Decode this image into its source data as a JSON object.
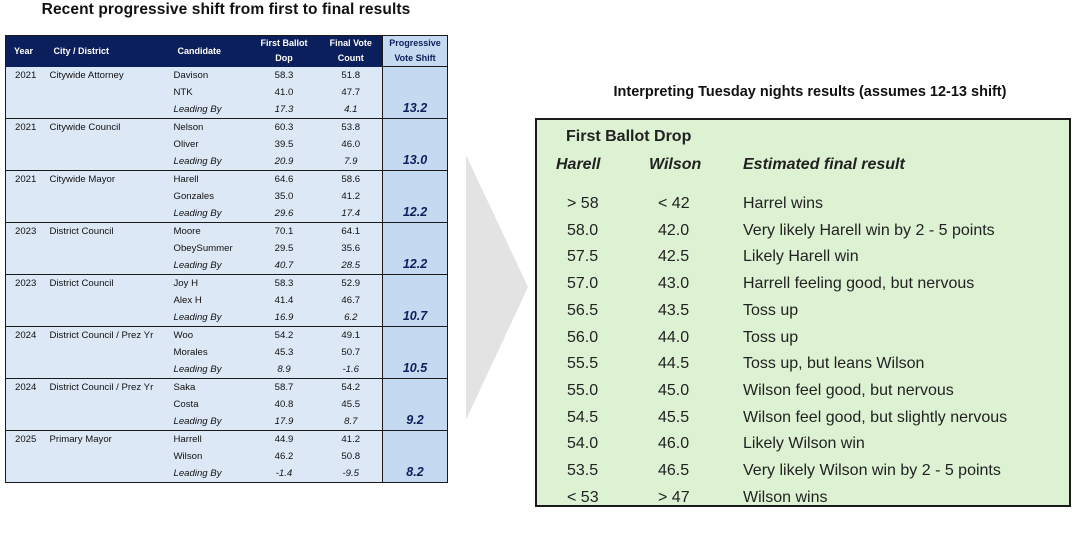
{
  "left_title": "Recent progressive shift from first to final results",
  "table": {
    "headers": {
      "year": "Year",
      "city": "City / District",
      "candidate": "Candidate",
      "first_ballot": [
        "First Ballot",
        "Dop"
      ],
      "final_vote": [
        "Final Vote",
        "Count"
      ],
      "shift": [
        "Progressive",
        "Vote Shift"
      ]
    },
    "groups": [
      {
        "year": "2021",
        "city": "Citywide Attorney",
        "shift": "13.2",
        "rows": [
          [
            "Davison",
            "58.3",
            "51.8"
          ],
          [
            "NTK",
            "41.0",
            "47.7"
          ],
          [
            "Leading By",
            "17.3",
            "4.1"
          ]
        ]
      },
      {
        "year": "2021",
        "city": "Citywide Council",
        "shift": "13.0",
        "rows": [
          [
            "Nelson",
            "60.3",
            "53.8"
          ],
          [
            "Oliver",
            "39.5",
            "46.0"
          ],
          [
            "Leading By",
            "20.9",
            "7.9"
          ]
        ]
      },
      {
        "year": "2021",
        "city": "Citywide Mayor",
        "shift": "12.2",
        "rows": [
          [
            "Harell",
            "64.6",
            "58.6"
          ],
          [
            "Gonzales",
            "35.0",
            "41.2"
          ],
          [
            "Leading By",
            "29.6",
            "17.4"
          ]
        ]
      },
      {
        "year": "2023",
        "city": "District Council",
        "shift": "12.2",
        "rows": [
          [
            "Moore",
            "70.1",
            "64.1"
          ],
          [
            "ObeySummer",
            "29.5",
            "35.6"
          ],
          [
            "Leading By",
            "40.7",
            "28.5"
          ]
        ]
      },
      {
        "year": "2023",
        "city": "District Council",
        "shift": "10.7",
        "rows": [
          [
            "Joy H",
            "58.3",
            "52.9"
          ],
          [
            "Alex H",
            "41.4",
            "46.7"
          ],
          [
            "Leading By",
            "16.9",
            "6.2"
          ]
        ]
      },
      {
        "year": "2024",
        "city": "District Council / Prez Yr",
        "shift": "10.5",
        "rows": [
          [
            "Woo",
            "54.2",
            "49.1"
          ],
          [
            "Morales",
            "45.3",
            "50.7"
          ],
          [
            "Leading By",
            "8.9",
            "-1.6"
          ]
        ]
      },
      {
        "year": "2024",
        "city": "District Council / Prez Yr",
        "shift": "9.2",
        "rows": [
          [
            "Saka",
            "58.7",
            "54.2"
          ],
          [
            "Costa",
            "40.8",
            "45.5"
          ],
          [
            "Leading By",
            "17.9",
            "8.7"
          ]
        ]
      },
      {
        "year": "2025",
        "city": "Primary Mayor",
        "shift": "8.2",
        "rows": [
          [
            "Harrell",
            "44.9",
            "41.2"
          ],
          [
            "Wilson",
            "46.2",
            "50.8"
          ],
          [
            "Leading By",
            "-1.4",
            "-9.5"
          ]
        ]
      }
    ]
  },
  "right_title": "Interpreting Tuesday nights results (assumes 12-13 shift)",
  "scenarios": {
    "heading": "First Ballot Drop",
    "col_harrell": "Harell",
    "col_wilson": "Wilson",
    "col_result": "Estimated final result",
    "rows": [
      [
        "> 58",
        "< 42",
        "Harrel wins"
      ],
      [
        "58.0",
        "42.0",
        "Very likely Harell win by 2 - 5 points"
      ],
      [
        "57.5",
        "42.5",
        "Likely Harell win"
      ],
      [
        "57.0",
        "43.0",
        "Harrell feeling good, but nervous"
      ],
      [
        "56.5",
        "43.5",
        "Toss up"
      ],
      [
        "56.0",
        "44.0",
        "Toss up"
      ],
      [
        "55.5",
        "44.5",
        "Toss up, but leans Wilson"
      ],
      [
        "55.0",
        "45.0",
        "Wilson feel good, but nervous"
      ],
      [
        "54.5",
        "45.5",
        "Wilson feel good, but slightly nervous"
      ],
      [
        "54.0",
        "46.0",
        "Likely Wilson win"
      ],
      [
        "53.5",
        "46.5",
        "Very likely Wilson win by 2 - 5 points"
      ],
      [
        "< 53",
        "> 47",
        "Wilson wins"
      ]
    ]
  },
  "colors": {
    "header_navy": "#0b1f5c",
    "row_light_blue": "#dde8f6",
    "shift_blue": "#c5d9f1",
    "scenario_green": "#ddf2d3",
    "arrow_gray": "#e3e3e3"
  }
}
